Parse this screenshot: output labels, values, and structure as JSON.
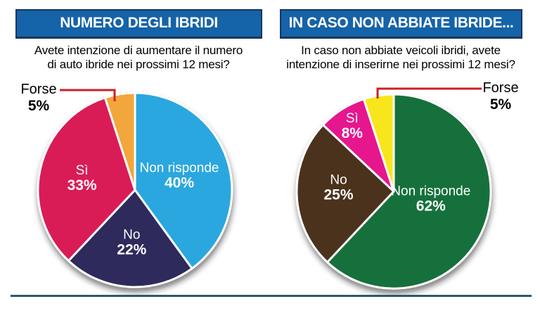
{
  "theme": {
    "banner_bg": "#1563a8",
    "banner_border": "#16365f",
    "banner_text": "#ffffff",
    "question_text_color": "#000000",
    "callout_line_color": "#cb2027",
    "divider_color": "#2e5670"
  },
  "panels": [
    {
      "banner_title": "NUMERO DEGLI IBRIDI",
      "question_line1": "Avete intenzione di aumentare il numero",
      "question_line2": "di auto ibride nei prossimi 12 mesi?",
      "callout_label": "Forse",
      "callout_value": "5%"
    },
    {
      "banner_title": "IN CASO NON ABBIATE IBRIDE...",
      "question_line1": "In caso non abbiate veicoli ibridi, avete",
      "question_line2": "intenzione di inserirne nei prossimi 12 mesi?",
      "callout_label": "Forse",
      "callout_value": "5%"
    }
  ],
  "chart_data": [
    {
      "type": "pie",
      "title": "NUMERO DEGLI IBRIDI",
      "question": "Avete intenzione di aumentare il numero di auto ibride nei prossimi 12 mesi?",
      "start_angle_deg": 0,
      "direction": "clockwise",
      "value_format": "percent",
      "slices": [
        {
          "label": "Non risponde",
          "value": 40,
          "color": "#29a7df",
          "text_color": "#ffffff",
          "label_f": 0.48
        },
        {
          "label": "No",
          "value": 22,
          "color": "#2e2a5c",
          "text_color": "#ffffff",
          "label_f": 0.54
        },
        {
          "label": "Sì",
          "value": 33,
          "color": "#da1a57",
          "text_color": "#ffffff",
          "label_f": 0.56
        },
        {
          "label": "Forse",
          "value": 5,
          "color": "#f3a63a",
          "text_color": "#000000",
          "callout": true
        }
      ]
    },
    {
      "type": "pie",
      "title": "IN CASO NON ABBIATE IBRIDE...",
      "question": "In caso non abbiate veicoli ibridi, avete intenzione di inserirne nei prossimi 12 mesi?",
      "start_angle_deg": 0,
      "direction": "clockwise",
      "value_format": "percent",
      "slices": [
        {
          "label": "Non risponde",
          "value": 62,
          "color": "#156f3a",
          "text_color": "#ffffff",
          "label_f": 0.39,
          "label_angle": 101
        },
        {
          "label": "No",
          "value": 25,
          "color": "#4b331f",
          "text_color": "#ffffff",
          "label_f": 0.57,
          "label_angle": 274
        },
        {
          "label": "Sì",
          "value": 8,
          "color": "#e6138d",
          "text_color": "#ffffff",
          "label_f": 0.8
        },
        {
          "label": "Forse",
          "value": 5,
          "color": "#f8e61e",
          "text_color": "#000000",
          "callout": true
        }
      ]
    }
  ]
}
